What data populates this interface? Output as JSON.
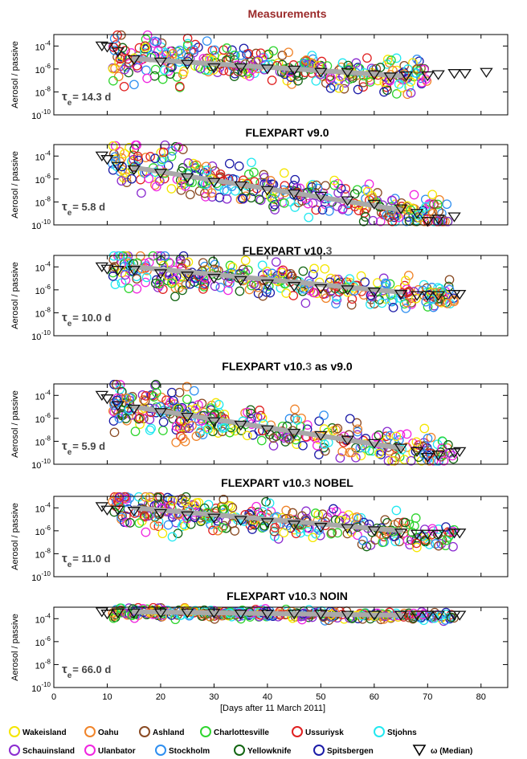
{
  "chart_data": {
    "type": "scatter",
    "ylabel": "Aerosol / passive",
    "xlabel": "[Days after 11 March 2011]",
    "xlim": [
      0,
      85
    ],
    "ylim_exp": [
      -10,
      -3
    ],
    "xticks": [
      "0",
      "10",
      "20",
      "30",
      "40",
      "50",
      "60",
      "70",
      "80"
    ],
    "yticks": [
      {
        "base": "10",
        "exp": "-4",
        "v": -4
      },
      {
        "base": "10",
        "exp": "-6",
        "v": -6
      },
      {
        "base": "10",
        "exp": "-8",
        "v": -8
      },
      {
        "base": "10",
        "exp": "-10",
        "v": -10
      }
    ],
    "panels": [
      {
        "title": "Measurements",
        "title_parts": [
          {
            "t": "Measurements",
            "c": "#9b2a2a"
          }
        ],
        "tau_sym": "τ",
        "tau_sub": "e",
        "tau_val": "= 14.3 d",
        "fit": {
          "x": [
            15,
            65
          ],
          "y": [
            -5.1,
            -6.6
          ]
        },
        "median": {
          "x": [
            9,
            10,
            12,
            15,
            20,
            25,
            30,
            35,
            40,
            45,
            50,
            55,
            60,
            63,
            66,
            70,
            72,
            75,
            77,
            81
          ],
          "y": [
            -4.0,
            -4.1,
            -4.5,
            -5.2,
            -5.4,
            -5.6,
            -5.9,
            -5.9,
            -6.0,
            -6.1,
            -6.3,
            -6.3,
            -6.5,
            -6.7,
            -6.6,
            -6.6,
            -6.5,
            -6.4,
            -6.4,
            -6.3
          ]
        },
        "scatter": {
          "xmin": 11,
          "xmax": 70,
          "slope": -0.03,
          "y0": -5.0,
          "spread": 1.5
        }
      },
      {
        "title": "FLEXPART v9.0",
        "title_parts": [
          {
            "t": "FLEXPART v9.0",
            "c": "#000000"
          }
        ],
        "tau_sym": "τ",
        "tau_sub": "e",
        "tau_val": "= 5.8 d",
        "fit": {
          "x": [
            15,
            65
          ],
          "y": [
            -5.0,
            -8.7
          ]
        },
        "median": {
          "x": [
            9,
            10,
            12,
            15,
            20,
            25,
            30,
            35,
            40,
            45,
            50,
            55,
            60,
            65,
            68,
            70,
            72,
            75
          ],
          "y": [
            -4.0,
            -4.3,
            -4.9,
            -5.2,
            -5.5,
            -5.9,
            -6.3,
            -6.6,
            -7.0,
            -7.3,
            -7.5,
            -7.9,
            -8.2,
            -8.6,
            -9.0,
            -9.7,
            -9.5,
            -9.3
          ]
        },
        "scatter": {
          "xmin": 11,
          "xmax": 74,
          "slope": -0.074,
          "y0": -5.0,
          "spread": 1.6
        }
      },
      {
        "title": "FLEXPART v10.3",
        "title_parts": [
          {
            "t": "FLEXPART v10.",
            "c": "#000000"
          },
          {
            "t": "3",
            "c": "#555555"
          }
        ],
        "tau_sym": "τ",
        "tau_sub": "e",
        "tau_val": "= 10.0 d",
        "fit": {
          "x": [
            15,
            65
          ],
          "y": [
            -4.0,
            -6.2
          ]
        },
        "median": {
          "x": [
            9,
            10,
            12,
            15,
            20,
            25,
            30,
            35,
            40,
            45,
            50,
            55,
            60,
            65,
            68,
            70,
            72,
            75,
            76
          ],
          "y": [
            -4.0,
            -4.2,
            -4.3,
            -4.3,
            -4.6,
            -4.8,
            -5.0,
            -5.2,
            -5.5,
            -5.7,
            -5.9,
            -6.0,
            -6.2,
            -6.4,
            -6.5,
            -6.5,
            -6.5,
            -6.4,
            -6.4
          ]
        },
        "scatter": {
          "xmin": 11,
          "xmax": 75,
          "slope": -0.044,
          "y0": -4.1,
          "spread": 1.3
        }
      },
      {
        "title": "FLEXPART v10.3 as v9.0",
        "title_parts": [
          {
            "t": "FLEXPART v10.",
            "c": "#000000"
          },
          {
            "t": "3",
            "c": "#555555"
          },
          {
            "t": "   as v9.0",
            "c": "#000000"
          }
        ],
        "tau_sym": "τ",
        "tau_sub": "e",
        "tau_val": "= 5.9 d",
        "fit": {
          "x": [
            15,
            65
          ],
          "y": [
            -5.0,
            -8.6
          ]
        },
        "median": {
          "x": [
            9,
            10,
            12,
            15,
            20,
            25,
            30,
            35,
            40,
            45,
            50,
            55,
            60,
            65,
            68,
            70,
            72,
            75,
            76
          ],
          "y": [
            -4.0,
            -4.3,
            -4.9,
            -5.2,
            -5.5,
            -5.9,
            -6.3,
            -6.6,
            -7.0,
            -7.3,
            -7.5,
            -7.9,
            -8.2,
            -8.6,
            -8.9,
            -9.4,
            -9.2,
            -9.0,
            -8.9
          ]
        },
        "scatter": {
          "xmin": 11,
          "xmax": 75,
          "slope": -0.072,
          "y0": -5.0,
          "spread": 1.6
        }
      },
      {
        "title": "FLEXPART v10.3 NOBEL",
        "title_parts": [
          {
            "t": "FLEXPART v10.",
            "c": "#000000"
          },
          {
            "t": "3",
            "c": "#555555"
          },
          {
            "t": "   NOBEL",
            "c": "#000000"
          }
        ],
        "tau_sym": "τ",
        "tau_sub": "e",
        "tau_val": "= 11.0 d",
        "fit": {
          "x": [
            15,
            65
          ],
          "y": [
            -4.0,
            -6.0
          ]
        },
        "median": {
          "x": [
            9,
            10,
            12,
            15,
            20,
            25,
            30,
            35,
            40,
            45,
            50,
            55,
            60,
            65,
            68,
            70,
            72,
            75,
            76
          ],
          "y": [
            -3.9,
            -4.2,
            -4.2,
            -4.3,
            -4.5,
            -4.7,
            -4.9,
            -5.1,
            -5.3,
            -5.5,
            -5.7,
            -5.8,
            -6.0,
            -6.2,
            -6.3,
            -6.3,
            -6.3,
            -6.2,
            -6.2
          ]
        },
        "scatter": {
          "xmin": 11,
          "xmax": 75,
          "slope": -0.04,
          "y0": -4.1,
          "spread": 1.3
        }
      },
      {
        "title": "FLEXPART v10.3 NOIN",
        "title_parts": [
          {
            "t": "FLEXPART v10.",
            "c": "#000000"
          },
          {
            "t": "3",
            "c": "#555555"
          },
          {
            "t": "   NOIN",
            "c": "#000000"
          }
        ],
        "tau_sym": "τ",
        "tau_sub": "e",
        "tau_val": "= 66.0 d",
        "fit": {
          "x": [
            15,
            65
          ],
          "y": [
            -3.4,
            -3.7
          ]
        },
        "median": {
          "x": [
            9,
            10,
            12,
            15,
            20,
            25,
            30,
            35,
            40,
            45,
            50,
            55,
            60,
            65,
            68,
            70,
            72,
            75,
            76
          ],
          "y": [
            -3.4,
            -3.6,
            -3.5,
            -3.5,
            -3.5,
            -3.5,
            -3.5,
            -3.6,
            -3.6,
            -3.6,
            -3.6,
            -3.7,
            -3.7,
            -3.7,
            -3.7,
            -3.7,
            -3.7,
            -3.7,
            -3.7
          ]
        },
        "scatter": {
          "xmin": 11,
          "xmax": 75,
          "slope": -0.006,
          "y0": -3.45,
          "spread": 0.4
        }
      }
    ],
    "legend": [
      [
        {
          "name": "Wakeisland",
          "color": "#f5e600"
        },
        {
          "name": "Oahu",
          "color": "#f0842a"
        },
        {
          "name": "Ashland",
          "color": "#8a4b24"
        },
        {
          "name": "Charlottesville",
          "color": "#2fd52f"
        },
        {
          "name": "Ussuriysk",
          "color": "#e02020"
        },
        {
          "name": "Stjohns",
          "color": "#22e8f0"
        }
      ],
      [
        {
          "name": "Schauinsland",
          "color": "#8b2cd0"
        },
        {
          "name": "Ulanbator",
          "color": "#f025e0"
        },
        {
          "name": "Stockholm",
          "color": "#2f8ff0"
        },
        {
          "name": "Yellowknife",
          "color": "#136613"
        },
        {
          "name": "Spitsbergen",
          "color": "#1c1ca8"
        },
        {
          "name": "ω (Median)",
          "color": "#000000",
          "marker": "triangle"
        }
      ]
    ],
    "legend_placement": "bottom"
  }
}
